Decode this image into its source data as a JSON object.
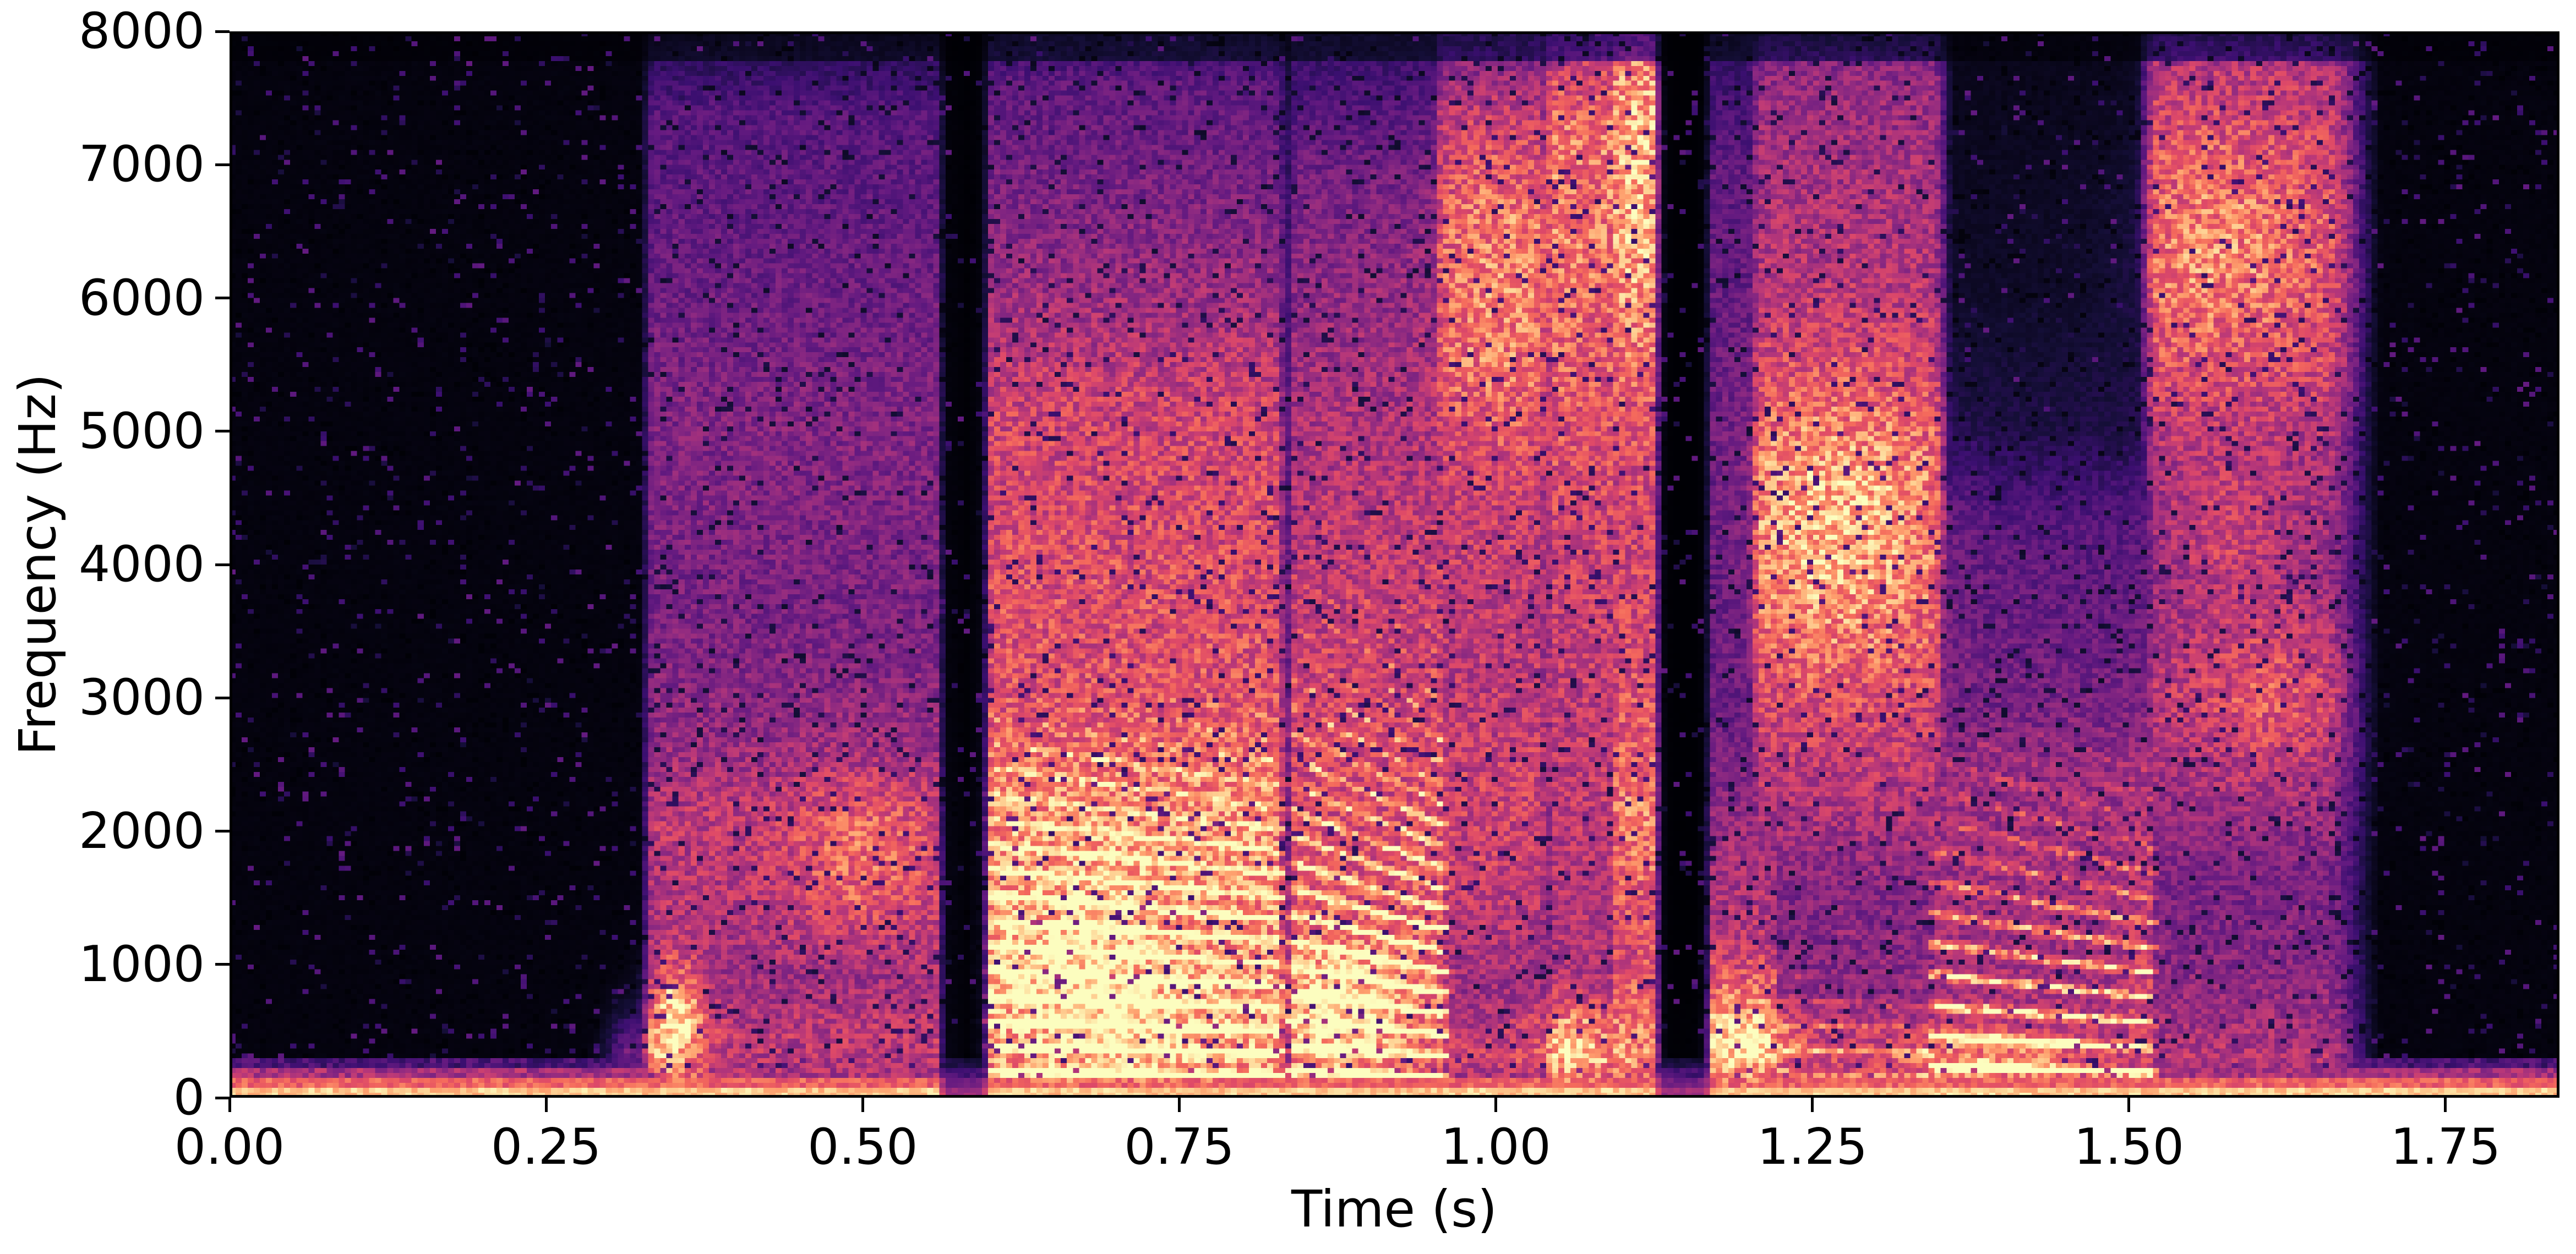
{
  "figure": {
    "background": "#ffffff"
  },
  "chart_data": {
    "type": "heatmap",
    "subtype": "audio-spectrogram",
    "title": "",
    "xlabel": "Time (s)",
    "ylabel": "Frequency (Hz)",
    "xlim": [
      0,
      1.84
    ],
    "ylim": [
      0,
      8000
    ],
    "grid": false,
    "legend": "none",
    "x_ticks": {
      "values": [
        0,
        0.25,
        0.5,
        0.75,
        1.0,
        1.25,
        1.5,
        1.75
      ],
      "labels": [
        "0.00",
        "0.25",
        "0.50",
        "0.75",
        "1.00",
        "1.25",
        "1.50",
        "1.75"
      ]
    },
    "y_ticks": {
      "values": [
        0,
        1000,
        2000,
        3000,
        4000,
        5000,
        6000,
        7000,
        8000
      ],
      "labels": [
        "0",
        "1000",
        "2000",
        "3000",
        "4000",
        "5000",
        "6000",
        "7000",
        "8000"
      ]
    },
    "colormap": {
      "name": "magma",
      "stops": [
        [
          0.0,
          "#000004"
        ],
        [
          0.1,
          "#140e36"
        ],
        [
          0.2,
          "#3b0f70"
        ],
        [
          0.3,
          "#641a80"
        ],
        [
          0.4,
          "#8c2981"
        ],
        [
          0.5,
          "#b73779"
        ],
        [
          0.6,
          "#de4968"
        ],
        [
          0.7,
          "#f4695c"
        ],
        [
          0.8,
          "#fe9f6d"
        ],
        [
          0.9,
          "#fed395"
        ],
        [
          1.0,
          "#fcfdbf"
        ]
      ]
    },
    "render": {
      "cols": 384,
      "rows": 216,
      "seed": 20240613,
      "base": 0.02,
      "texture": {
        "mul_min": 0.78,
        "mul_range": 0.5,
        "dark_prob": 0.055,
        "dark_mul": 0.3
      },
      "speck": {
        "prob": 0.05,
        "min": 0.1,
        "range": 0.2
      },
      "top_fade": {
        "above_hz": 7760,
        "mul": 0.45
      },
      "gaps": [
        [
          0.566,
          0.594
        ],
        [
          1.132,
          1.164
        ]
      ],
      "gap_floor_mul": 0.05,
      "gap_band_mul": 0.4,
      "bottom_band": [
        [
          75,
          0.8,
          0.15
        ],
        [
          145,
          0.58,
          0.18
        ],
        [
          215,
          0.36,
          0.2
        ],
        [
          290,
          0.16,
          0.15
        ]
      ],
      "segments": [
        {
          "name": "onset-weak",
          "t": [
            0.335,
            0.565
          ],
          "attack": 0.012,
          "release": 0.025,
          "bands": [
            [
              0,
              0.28
            ],
            [
              150,
              0.46
            ],
            [
              450,
              0.5
            ],
            [
              900,
              0.42
            ],
            [
              1500,
              0.48
            ],
            [
              2100,
              0.5
            ],
            [
              2700,
              0.4
            ],
            [
              3600,
              0.34
            ],
            [
              5000,
              0.36
            ],
            [
              6300,
              0.3
            ],
            [
              7400,
              0.26
            ],
            [
              8000,
              0.1
            ]
          ]
        },
        {
          "name": "voiced-strong-1",
          "t": [
            0.598,
            0.825
          ],
          "attack": 0.02,
          "release": 0.018,
          "bands": [
            [
              0,
              0.5
            ],
            [
              200,
              0.9
            ],
            [
              700,
              0.93
            ],
            [
              1300,
              0.88
            ],
            [
              1900,
              0.85
            ],
            [
              2400,
              0.75
            ],
            [
              3000,
              0.6
            ],
            [
              4200,
              0.58
            ],
            [
              5200,
              0.55
            ],
            [
              5800,
              0.45
            ],
            [
              6800,
              0.34
            ],
            [
              7600,
              0.28
            ],
            [
              8000,
              0.16
            ]
          ],
          "f0": [
            190,
            168
          ],
          "harm_amp": 0.55,
          "harm_fmax": 3200
        },
        {
          "name": "voiced-strong-2",
          "t": [
            0.843,
            0.955
          ],
          "attack": 0.015,
          "release": 0.018,
          "bands": [
            [
              0,
              0.5
            ],
            [
              200,
              0.86
            ],
            [
              650,
              0.9
            ],
            [
              1200,
              0.82
            ],
            [
              1800,
              0.72
            ],
            [
              2400,
              0.65
            ],
            [
              3300,
              0.55
            ],
            [
              4300,
              0.5
            ],
            [
              5200,
              0.45
            ],
            [
              6000,
              0.4
            ],
            [
              7000,
              0.32
            ],
            [
              8000,
              0.16
            ]
          ],
          "f0": [
            195,
            158
          ],
          "harm_amp": 0.6,
          "harm_fmax": 4200
        },
        {
          "name": "fricative-1",
          "t": [
            0.958,
            1.035
          ],
          "attack": 0.015,
          "release": 0.012,
          "bands": [
            [
              0,
              0.35
            ],
            [
              300,
              0.55
            ],
            [
              800,
              0.42
            ],
            [
              1600,
              0.52
            ],
            [
              2200,
              0.55
            ],
            [
              3200,
              0.5
            ],
            [
              4500,
              0.52
            ],
            [
              5500,
              0.6
            ],
            [
              6500,
              0.58
            ],
            [
              7300,
              0.48
            ],
            [
              8000,
              0.28
            ]
          ]
        },
        {
          "name": "fricative-2",
          "t": [
            1.045,
            1.092
          ],
          "attack": 0.012,
          "release": 0.01,
          "bands": [
            [
              0,
              0.45
            ],
            [
              300,
              0.68
            ],
            [
              900,
              0.45
            ],
            [
              2000,
              0.5
            ],
            [
              3500,
              0.52
            ],
            [
              5000,
              0.58
            ],
            [
              6200,
              0.64
            ],
            [
              7200,
              0.66
            ],
            [
              7800,
              0.52
            ],
            [
              8000,
              0.36
            ]
          ]
        },
        {
          "name": "burst",
          "t": [
            1.096,
            1.13
          ],
          "attack": 0.01,
          "release": 0.01,
          "bands": [
            [
              0,
              0.5
            ],
            [
              300,
              0.72
            ],
            [
              1100,
              0.58
            ],
            [
              2100,
              0.7
            ],
            [
              3100,
              0.58
            ],
            [
              4200,
              0.55
            ],
            [
              5200,
              0.6
            ],
            [
              6000,
              0.7
            ],
            [
              7000,
              0.74
            ],
            [
              7700,
              0.68
            ],
            [
              8000,
              0.45
            ]
          ]
        },
        {
          "name": "voiced-3-low",
          "t": [
            1.168,
            1.218
          ],
          "attack": 0.012,
          "release": 0.015,
          "bands": [
            [
              0,
              0.45
            ],
            [
              300,
              0.72
            ],
            [
              700,
              0.62
            ],
            [
              1300,
              0.48
            ],
            [
              2000,
              0.42
            ],
            [
              2800,
              0.3
            ],
            [
              4000,
              0.28
            ],
            [
              5500,
              0.3
            ],
            [
              7000,
              0.28
            ],
            [
              8000,
              0.15
            ]
          ]
        },
        {
          "name": "voiced-3",
          "t": [
            1.21,
            1.345
          ],
          "attack": 0.02,
          "release": 0.02,
          "bands": [
            [
              0,
              0.42
            ],
            [
              300,
              0.62
            ],
            [
              800,
              0.4
            ],
            [
              1500,
              0.36
            ],
            [
              2300,
              0.48
            ],
            [
              3100,
              0.56
            ],
            [
              3900,
              0.64
            ],
            [
              4700,
              0.64
            ],
            [
              5400,
              0.54
            ],
            [
              6200,
              0.47
            ],
            [
              7000,
              0.44
            ],
            [
              7700,
              0.4
            ],
            [
              8000,
              0.22
            ]
          ],
          "f0": [
            185,
            170
          ],
          "harm_amp": 0.25,
          "harm_fmax": 1600
        },
        {
          "name": "voiced-tail-arcs",
          "t": [
            1.348,
            1.515
          ],
          "attack": 0.015,
          "release": 0.02,
          "bands": [
            [
              0,
              0.5
            ],
            [
              250,
              0.78
            ],
            [
              650,
              0.62
            ],
            [
              1200,
              0.55
            ],
            [
              1800,
              0.5
            ],
            [
              2400,
              0.44
            ],
            [
              2900,
              0.34
            ],
            [
              3600,
              0.3
            ],
            [
              4300,
              0.26
            ],
            [
              5000,
              0.12
            ],
            [
              6000,
              0.07
            ],
            [
              8000,
              0.04
            ]
          ],
          "f0": [
            230,
            188
          ],
          "harm_amp": 0.65,
          "harm_fmax": 3000
        },
        {
          "name": "closure-line",
          "t": [
            1.5,
            1.517
          ],
          "attack": 0.008,
          "release": 0.008,
          "bands": [
            [
              0,
              0.5
            ],
            [
              600,
              0.55
            ],
            [
              1600,
              0.5
            ],
            [
              2600,
              0.42
            ],
            [
              3100,
              0.12
            ],
            [
              8000,
              0.03
            ]
          ]
        },
        {
          "name": "final-fricative",
          "t": [
            1.522,
            1.655
          ],
          "attack": 0.02,
          "release": 0.05,
          "bands": [
            [
              0,
              0.28
            ],
            [
              300,
              0.48
            ],
            [
              900,
              0.38
            ],
            [
              1600,
              0.34
            ],
            [
              2300,
              0.42
            ],
            [
              3000,
              0.5
            ],
            [
              3900,
              0.4
            ],
            [
              4800,
              0.45
            ],
            [
              5500,
              0.55
            ],
            [
              6300,
              0.6
            ],
            [
              7100,
              0.55
            ],
            [
              7700,
              0.48
            ],
            [
              8000,
              0.28
            ]
          ]
        }
      ],
      "hotspots": [
        [
          0.315,
          300,
          0.012,
          220,
          0.28
        ],
        [
          0.352,
          550,
          0.015,
          320,
          0.5
        ],
        [
          0.5,
          1800,
          0.04,
          450,
          0.18
        ],
        [
          0.67,
          850,
          0.05,
          600,
          0.22
        ],
        [
          0.76,
          420,
          0.05,
          260,
          0.15
        ],
        [
          0.88,
          650,
          0.03,
          330,
          0.3
        ],
        [
          1.005,
          6300,
          0.035,
          900,
          0.14
        ],
        [
          1.06,
          380,
          0.022,
          240,
          0.22
        ],
        [
          1.115,
          6900,
          0.02,
          900,
          0.1
        ],
        [
          1.195,
          450,
          0.028,
          240,
          0.3
        ],
        [
          1.27,
          4300,
          0.05,
          800,
          0.2
        ],
        [
          1.385,
          260,
          0.045,
          170,
          0.25
        ],
        [
          1.57,
          6400,
          0.045,
          700,
          0.14
        ],
        [
          1.58,
          4200,
          0.03,
          400,
          0.12
        ],
        [
          1.61,
          3000,
          0.035,
          500,
          0.12
        ]
      ]
    }
  }
}
